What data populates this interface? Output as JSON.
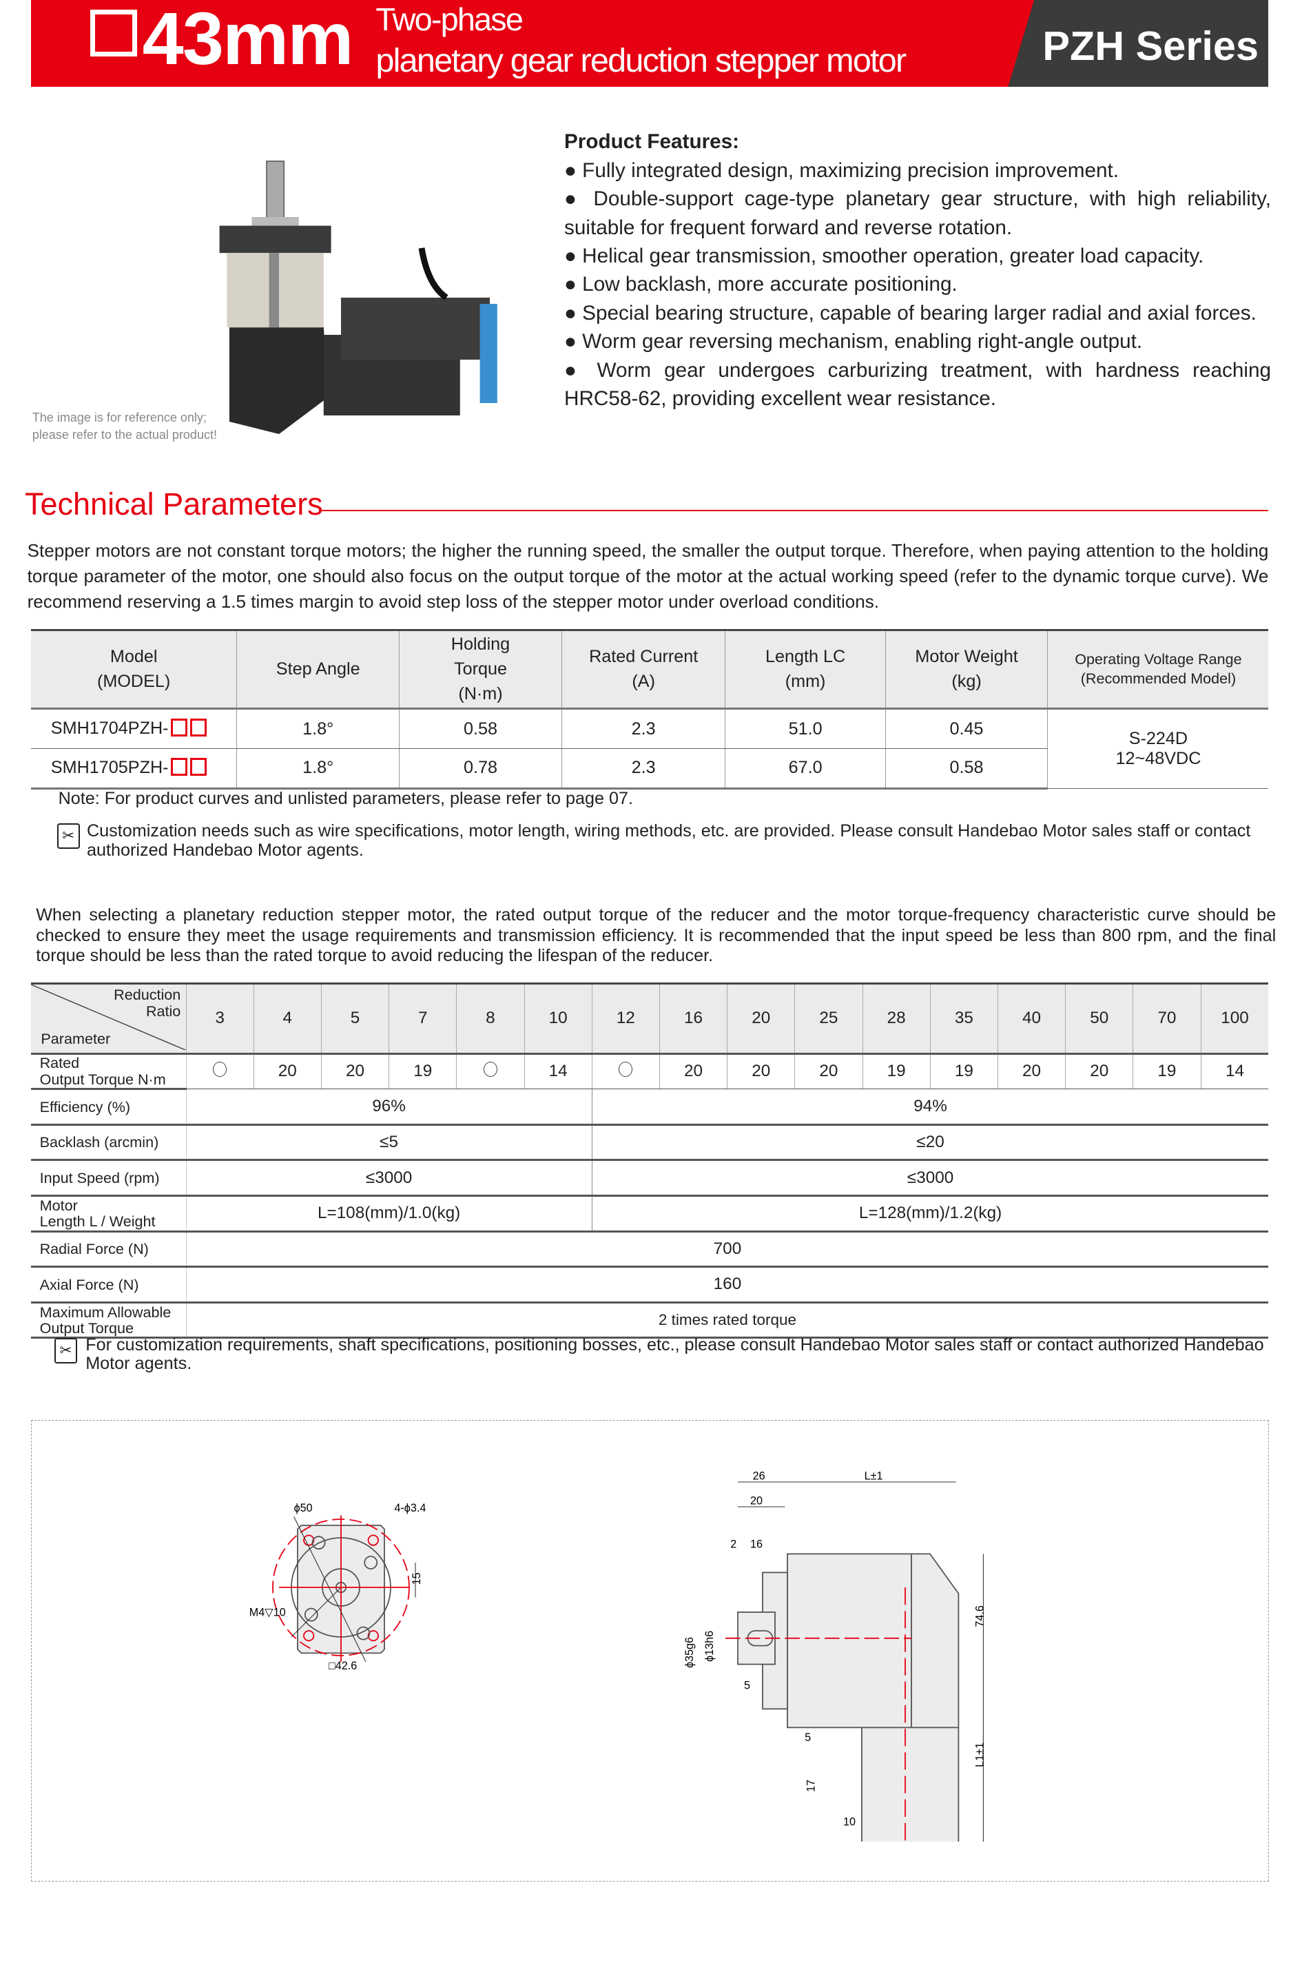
{
  "header": {
    "size": "43mm",
    "line1": "Two-phase",
    "line2": "planetary gear reduction stepper motor",
    "series": "PZH Series",
    "colors": {
      "red": "#e60012",
      "dark": "#3b3b3b"
    }
  },
  "product": {
    "caption1": "The image is for reference only;",
    "caption2": "please refer to the actual product!"
  },
  "features": {
    "title": "Product Features:",
    "items": [
      "● Fully integrated design, maximizing precision improvement.",
      "● Double-support cage-type planetary gear structure, with high reliability, suitable for frequent forward and reverse rotation.",
      "● Helical gear transmission, smoother operation, greater load capacity.",
      "● Low backlash, more accurate positioning.",
      "● Special bearing structure, capable of bearing larger radial and axial forces.",
      "● Worm gear reversing mechanism, enabling right-angle output.",
      "● Worm gear undergoes carburizing treatment, with hardness reaching HRC58-62, providing excellent wear resistance."
    ]
  },
  "tech": {
    "title": "Technical Parameters",
    "intro": "Stepper motors are not constant torque motors; the higher the running speed, the smaller the output torque. Therefore, when paying attention to the holding torque parameter of the motor, one should also focus on the output torque of the motor at the actual working speed (refer to the dynamic torque curve). We recommend reserving a 1.5 times margin to avoid step loss of the stepper motor under overload conditions."
  },
  "motor_table": {
    "headers": [
      [
        "Model",
        "(MODEL)"
      ],
      [
        "Step Angle"
      ],
      [
        "Holding",
        "Torque",
        "(N·m)"
      ],
      [
        "Rated Current",
        "(A)"
      ],
      [
        "Length LC",
        "(mm)"
      ],
      [
        "Motor Weight",
        "(kg)"
      ],
      [
        "Operating Voltage Range",
        "(Recommended Model)"
      ]
    ],
    "rows": [
      [
        "SMH1704PZH-",
        "1.8°",
        "0.58",
        "2.3",
        "51.0",
        "0.45"
      ],
      [
        "SMH1705PZH-",
        "1.8°",
        "0.78",
        "2.3",
        "67.0",
        "0.58"
      ]
    ],
    "voltage": [
      "S-224D",
      "12~48VDC"
    ]
  },
  "note": "Note: For product curves and unlisted parameters, please refer to page 07.",
  "custom1": "Customization needs such as wire specifications, motor length, wiring methods, etc. are provided. Please consult Handebao Motor sales staff or contact authorized Handebao Motor agents.",
  "gear_intro": "When selecting a planetary reduction stepper motor, the rated output torque of the reducer and the motor torque-frequency characteristic curve should be checked to ensure they meet the usage requirements and transmission efficiency. It is recommended that the input speed be less than 800 rpm, and the final torque should be less than the rated torque to avoid reducing the lifespan of the reducer.",
  "gear_table": {
    "corner_top": [
      "Reduction",
      "Ratio"
    ],
    "corner_bottom": "Parameter",
    "ratios": [
      "3",
      "4",
      "5",
      "7",
      "8",
      "10",
      "12",
      "16",
      "20",
      "25",
      "28",
      "35",
      "40",
      "50",
      "70",
      "100"
    ],
    "torque_label": [
      "Rated",
      "Output Torque N·m"
    ],
    "torque": [
      "○",
      "20",
      "20",
      "19",
      "○",
      "14",
      "○",
      "20",
      "20",
      "20",
      "19",
      "19",
      "20",
      "20",
      "19",
      "14"
    ],
    "split_rows": [
      {
        "label": [
          "Efficiency (%)"
        ],
        "a": "96%",
        "b": "94%"
      },
      {
        "label": [
          "Backlash (arcmin)"
        ],
        "a": "≤5",
        "b": "≤20"
      },
      {
        "label": [
          "Input Speed (rpm)"
        ],
        "a": "≤3000",
        "b": "≤3000"
      },
      {
        "label": [
          "Motor",
          "Length L / Weight"
        ],
        "a": "L=108(mm)/1.0(kg)",
        "b": "L=128(mm)/1.2(kg)"
      }
    ],
    "full_rows": [
      {
        "label": [
          "Radial Force (N)"
        ],
        "v": "700"
      },
      {
        "label": [
          "Axial Force (N)"
        ],
        "v": "160"
      },
      {
        "label": [
          "Maximum Allowable",
          "Output Torque"
        ],
        "v": "2 times rated torque"
      }
    ]
  },
  "custom2": "For customization requirements, shaft specifications, positioning bosses, etc., please consult Handebao Motor sales staff or contact authorized Handebao Motor agents.",
  "drawing": {
    "front": {
      "d50": "ϕ50",
      "holes": "4-ϕ3.4",
      "m4": "M4▽10",
      "h15": "15",
      "sq": "□42.6"
    },
    "side": {
      "d26": "26",
      "L": "L±1",
      "d20": "20",
      "d2": "2",
      "d16": "16",
      "d35": "ϕ35g6",
      "d13": "ϕ13h6",
      "d5a": "5",
      "d5b": "5",
      "h746": "74.6",
      "L1": "L1±1",
      "d17": "17",
      "d10": "10"
    }
  }
}
